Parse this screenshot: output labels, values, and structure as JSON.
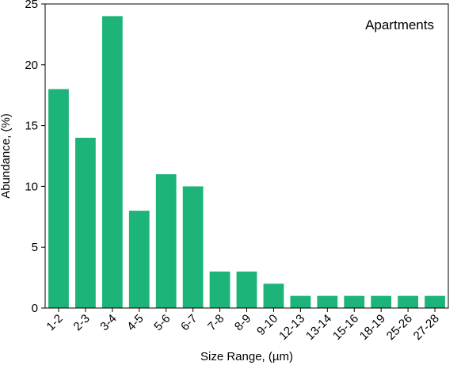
{
  "chart_data": {
    "type": "bar",
    "categories": [
      "1-2",
      "2-3",
      "3-4",
      "4-5",
      "5-6",
      "6-7",
      "7-8",
      "8-9",
      "9-10",
      "12-13",
      "13-14",
      "15-16",
      "18-19",
      "25-26",
      "27-28"
    ],
    "values": [
      18,
      14,
      24,
      8,
      11,
      10,
      3,
      3,
      2,
      1,
      1,
      1,
      1,
      1,
      1
    ],
    "title": "",
    "annotation": "Apartments",
    "xlabel": "Size Range, (µm)",
    "ylabel": "Abundance, (%)",
    "ylim": [
      0,
      25
    ],
    "yticks": [
      0,
      5,
      10,
      15,
      20,
      25
    ],
    "grid": false,
    "bar_color": "#1db47a",
    "annotation_position": "top-right"
  }
}
